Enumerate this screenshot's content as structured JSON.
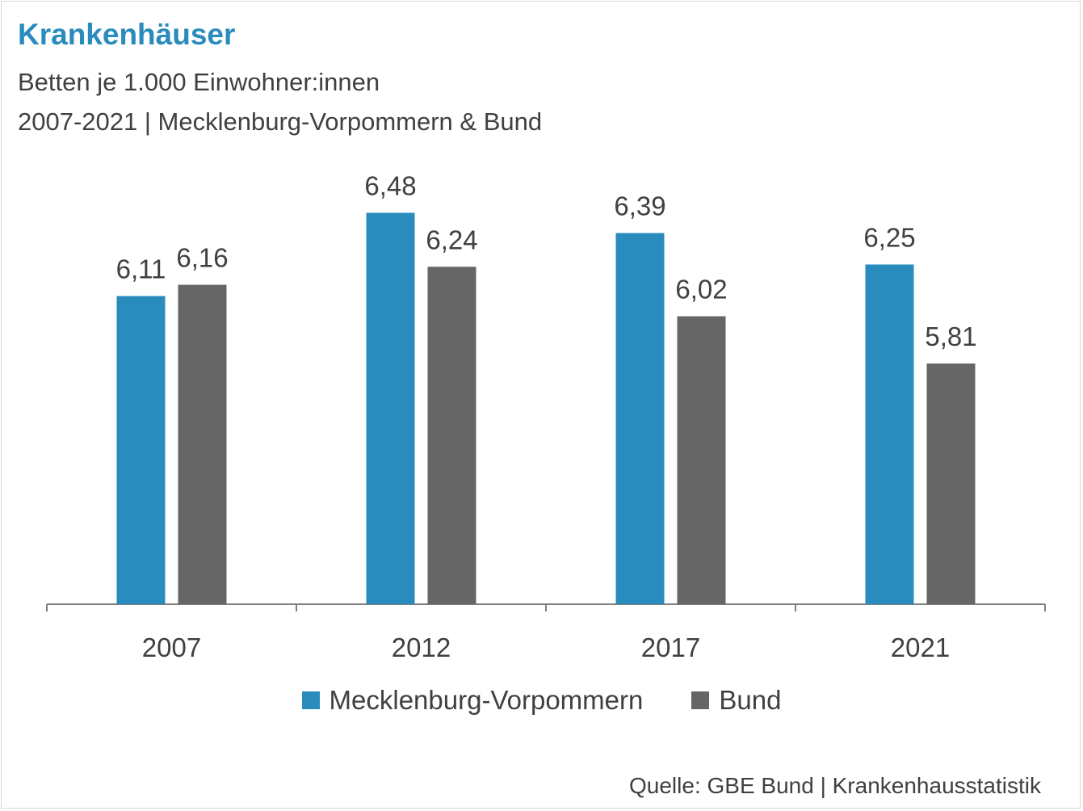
{
  "title": "Krankenhäuser",
  "subtitle_line1": "Betten je 1.000 Einwohner:innen",
  "subtitle_line2": "2007-2021 | Mecklenburg-Vorpommern & Bund",
  "source": "Quelle: GBE Bund | Krankenhausstatistik",
  "colors": {
    "mv": "#2a8bbd",
    "bund": "#666666",
    "text": "#404040",
    "axis": "#7f7f7f"
  },
  "chart_data": {
    "type": "bar",
    "categories": [
      "2007",
      "2012",
      "2017",
      "2021"
    ],
    "series": [
      {
        "name": "Mecklenburg-Vorpommern",
        "values": [
          6.11,
          6.48,
          6.39,
          6.25
        ],
        "labels": [
          "6,11",
          "6,48",
          "6,39",
          "6,25"
        ]
      },
      {
        "name": "Bund",
        "values": [
          6.16,
          6.24,
          6.02,
          5.81
        ],
        "labels": [
          "6,16",
          "6,24",
          "6,02",
          "5,81"
        ]
      }
    ],
    "title": "Krankenhäuser",
    "xlabel": "",
    "ylabel": "",
    "ylim": [
      4.74,
      6.6
    ],
    "grid": false,
    "legend": "bottom-center"
  }
}
